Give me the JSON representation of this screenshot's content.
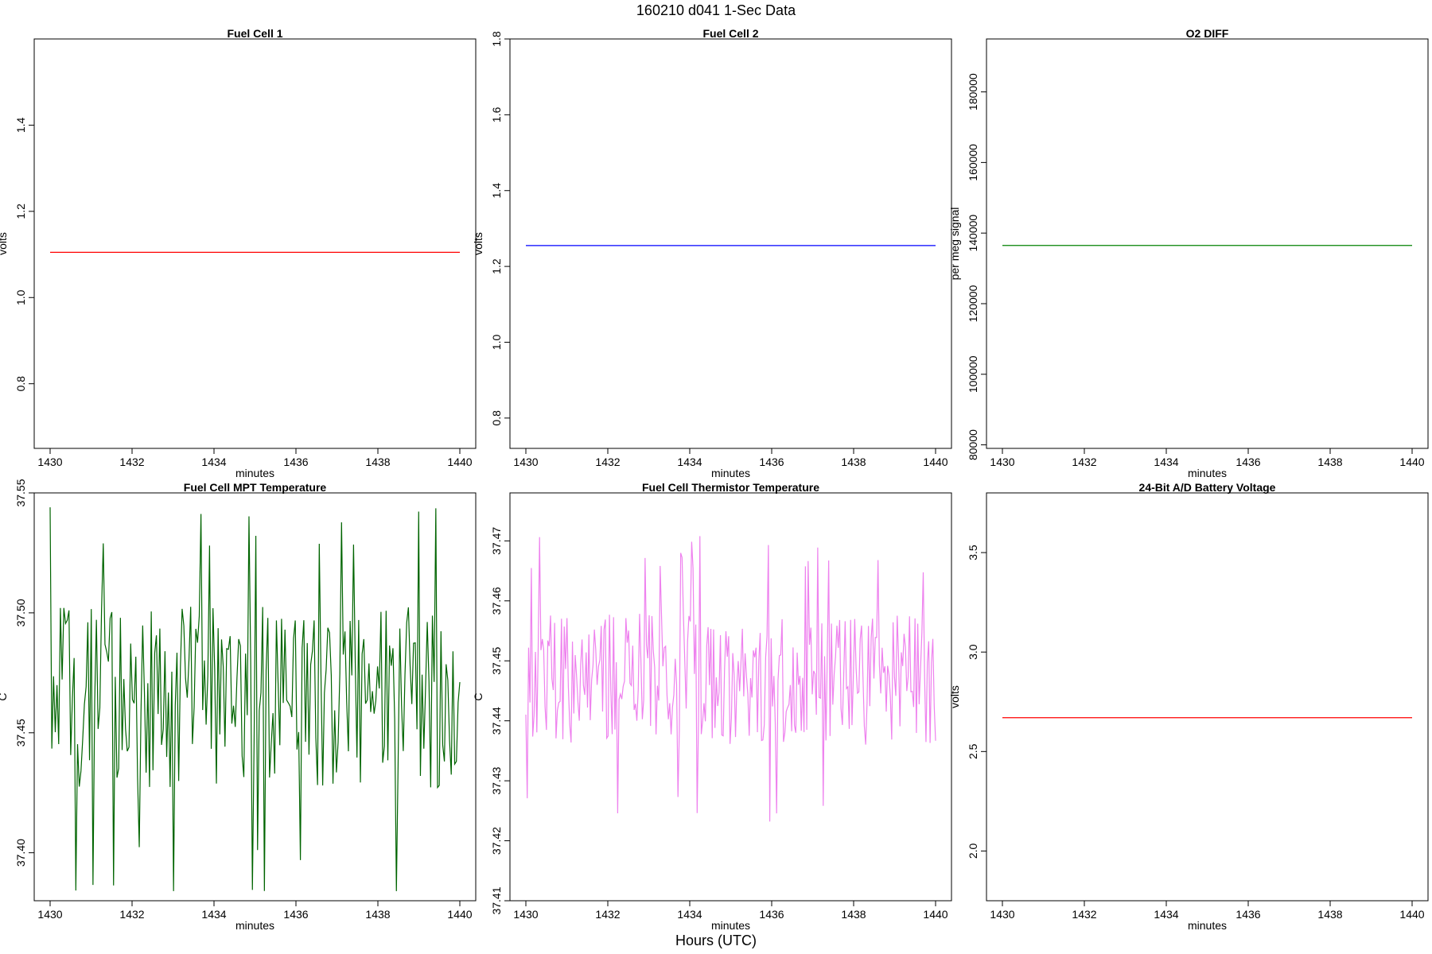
{
  "figure": {
    "title": "160210   d041   1-Sec Data",
    "xlabel": "Hours (UTC)"
  },
  "chart_data": [
    {
      "type": "line",
      "title": "Fuel Cell 1",
      "xlabel": "minutes",
      "ylabel": "volts",
      "xlim": [
        1430,
        1440
      ],
      "ylim": [
        0.65,
        1.6
      ],
      "xticks": [
        1430,
        1432,
        1434,
        1436,
        1438,
        1440
      ],
      "yticks": [
        0.8,
        1.0,
        1.2,
        1.4
      ],
      "ytick_labels": [
        "0.8",
        "1.0",
        "1.2",
        "1.4"
      ],
      "color": "#ff0000",
      "pattern": "flat",
      "x": [
        1430,
        1440
      ],
      "y": [
        1.105,
        1.105
      ]
    },
    {
      "type": "line",
      "title": "Fuel Cell 2",
      "xlabel": "minutes",
      "ylabel": "volts",
      "xlim": [
        1430,
        1440
      ],
      "ylim": [
        0.72,
        1.8
      ],
      "xticks": [
        1430,
        1432,
        1434,
        1436,
        1438,
        1440
      ],
      "yticks": [
        0.8,
        1.0,
        1.2,
        1.4,
        1.6,
        1.8
      ],
      "ytick_labels": [
        "0.8",
        "1.0",
        "1.2",
        "1.4",
        "1.6",
        "1.8"
      ],
      "color": "#0000ff",
      "pattern": "flat",
      "x": [
        1430,
        1440
      ],
      "y": [
        1.255,
        1.255
      ]
    },
    {
      "type": "line",
      "title": "O2 DIFF",
      "xlabel": "minutes",
      "ylabel": "per meg signal",
      "xlim": [
        1430,
        1440
      ],
      "ylim": [
        79000,
        195000
      ],
      "xticks": [
        1430,
        1432,
        1434,
        1436,
        1438,
        1440
      ],
      "yticks": [
        80000,
        100000,
        120000,
        140000,
        160000,
        180000
      ],
      "ytick_labels": [
        "80000",
        "100000",
        "120000",
        "140000",
        "160000",
        "180000"
      ],
      "color": "#008000",
      "pattern": "flat",
      "x": [
        1430,
        1440
      ],
      "y": [
        136500,
        136500
      ]
    },
    {
      "type": "line",
      "title": "Fuel Cell MPT Temperature",
      "xlabel": "minutes",
      "ylabel": "C",
      "xlim": [
        1430,
        1440
      ],
      "ylim": [
        37.38,
        37.55
      ],
      "xticks": [
        1430,
        1432,
        1434,
        1436,
        1438,
        1440
      ],
      "yticks": [
        37.4,
        37.45,
        37.5,
        37.55
      ],
      "ytick_labels": [
        "37.40",
        "37.45",
        "37.50",
        "37.55"
      ],
      "color": "#006400",
      "pattern": "noise",
      "x_range": [
        1430,
        1440
      ],
      "points": 240,
      "center": 37.465,
      "amplitude": 0.038,
      "range": [
        37.384,
        37.544
      ]
    },
    {
      "type": "line",
      "title": "Fuel Cell Thermistor Temperature",
      "xlabel": "minutes",
      "ylabel": "C",
      "xlim": [
        1430,
        1440
      ],
      "ylim": [
        37.41,
        37.478
      ],
      "xticks": [
        1430,
        1432,
        1434,
        1436,
        1438,
        1440
      ],
      "yticks": [
        37.41,
        37.42,
        37.43,
        37.44,
        37.45,
        37.46,
        37.47
      ],
      "ytick_labels": [
        "37.41",
        "37.42",
        "37.43",
        "37.44",
        "37.45",
        "37.46",
        "37.47"
      ],
      "color": "#ee82ee",
      "pattern": "noise",
      "x_range": [
        1430,
        1440
      ],
      "points": 300,
      "center": 37.447,
      "amplitude": 0.011,
      "range": [
        37.411,
        37.476
      ]
    },
    {
      "type": "line",
      "title": "24-Bit A/D Battery Voltage",
      "xlabel": "minutes",
      "ylabel": "volts",
      "xlim": [
        1430,
        1440
      ],
      "ylim": [
        1.75,
        3.8
      ],
      "xticks": [
        1430,
        1432,
        1434,
        1436,
        1438,
        1440
      ],
      "yticks": [
        2.0,
        2.5,
        3.0,
        3.5
      ],
      "ytick_labels": [
        "2.0",
        "2.5",
        "3.0",
        "3.5"
      ],
      "color": "#ff0000",
      "pattern": "flat",
      "x": [
        1430,
        1440
      ],
      "y": [
        2.67,
        2.67
      ]
    }
  ]
}
